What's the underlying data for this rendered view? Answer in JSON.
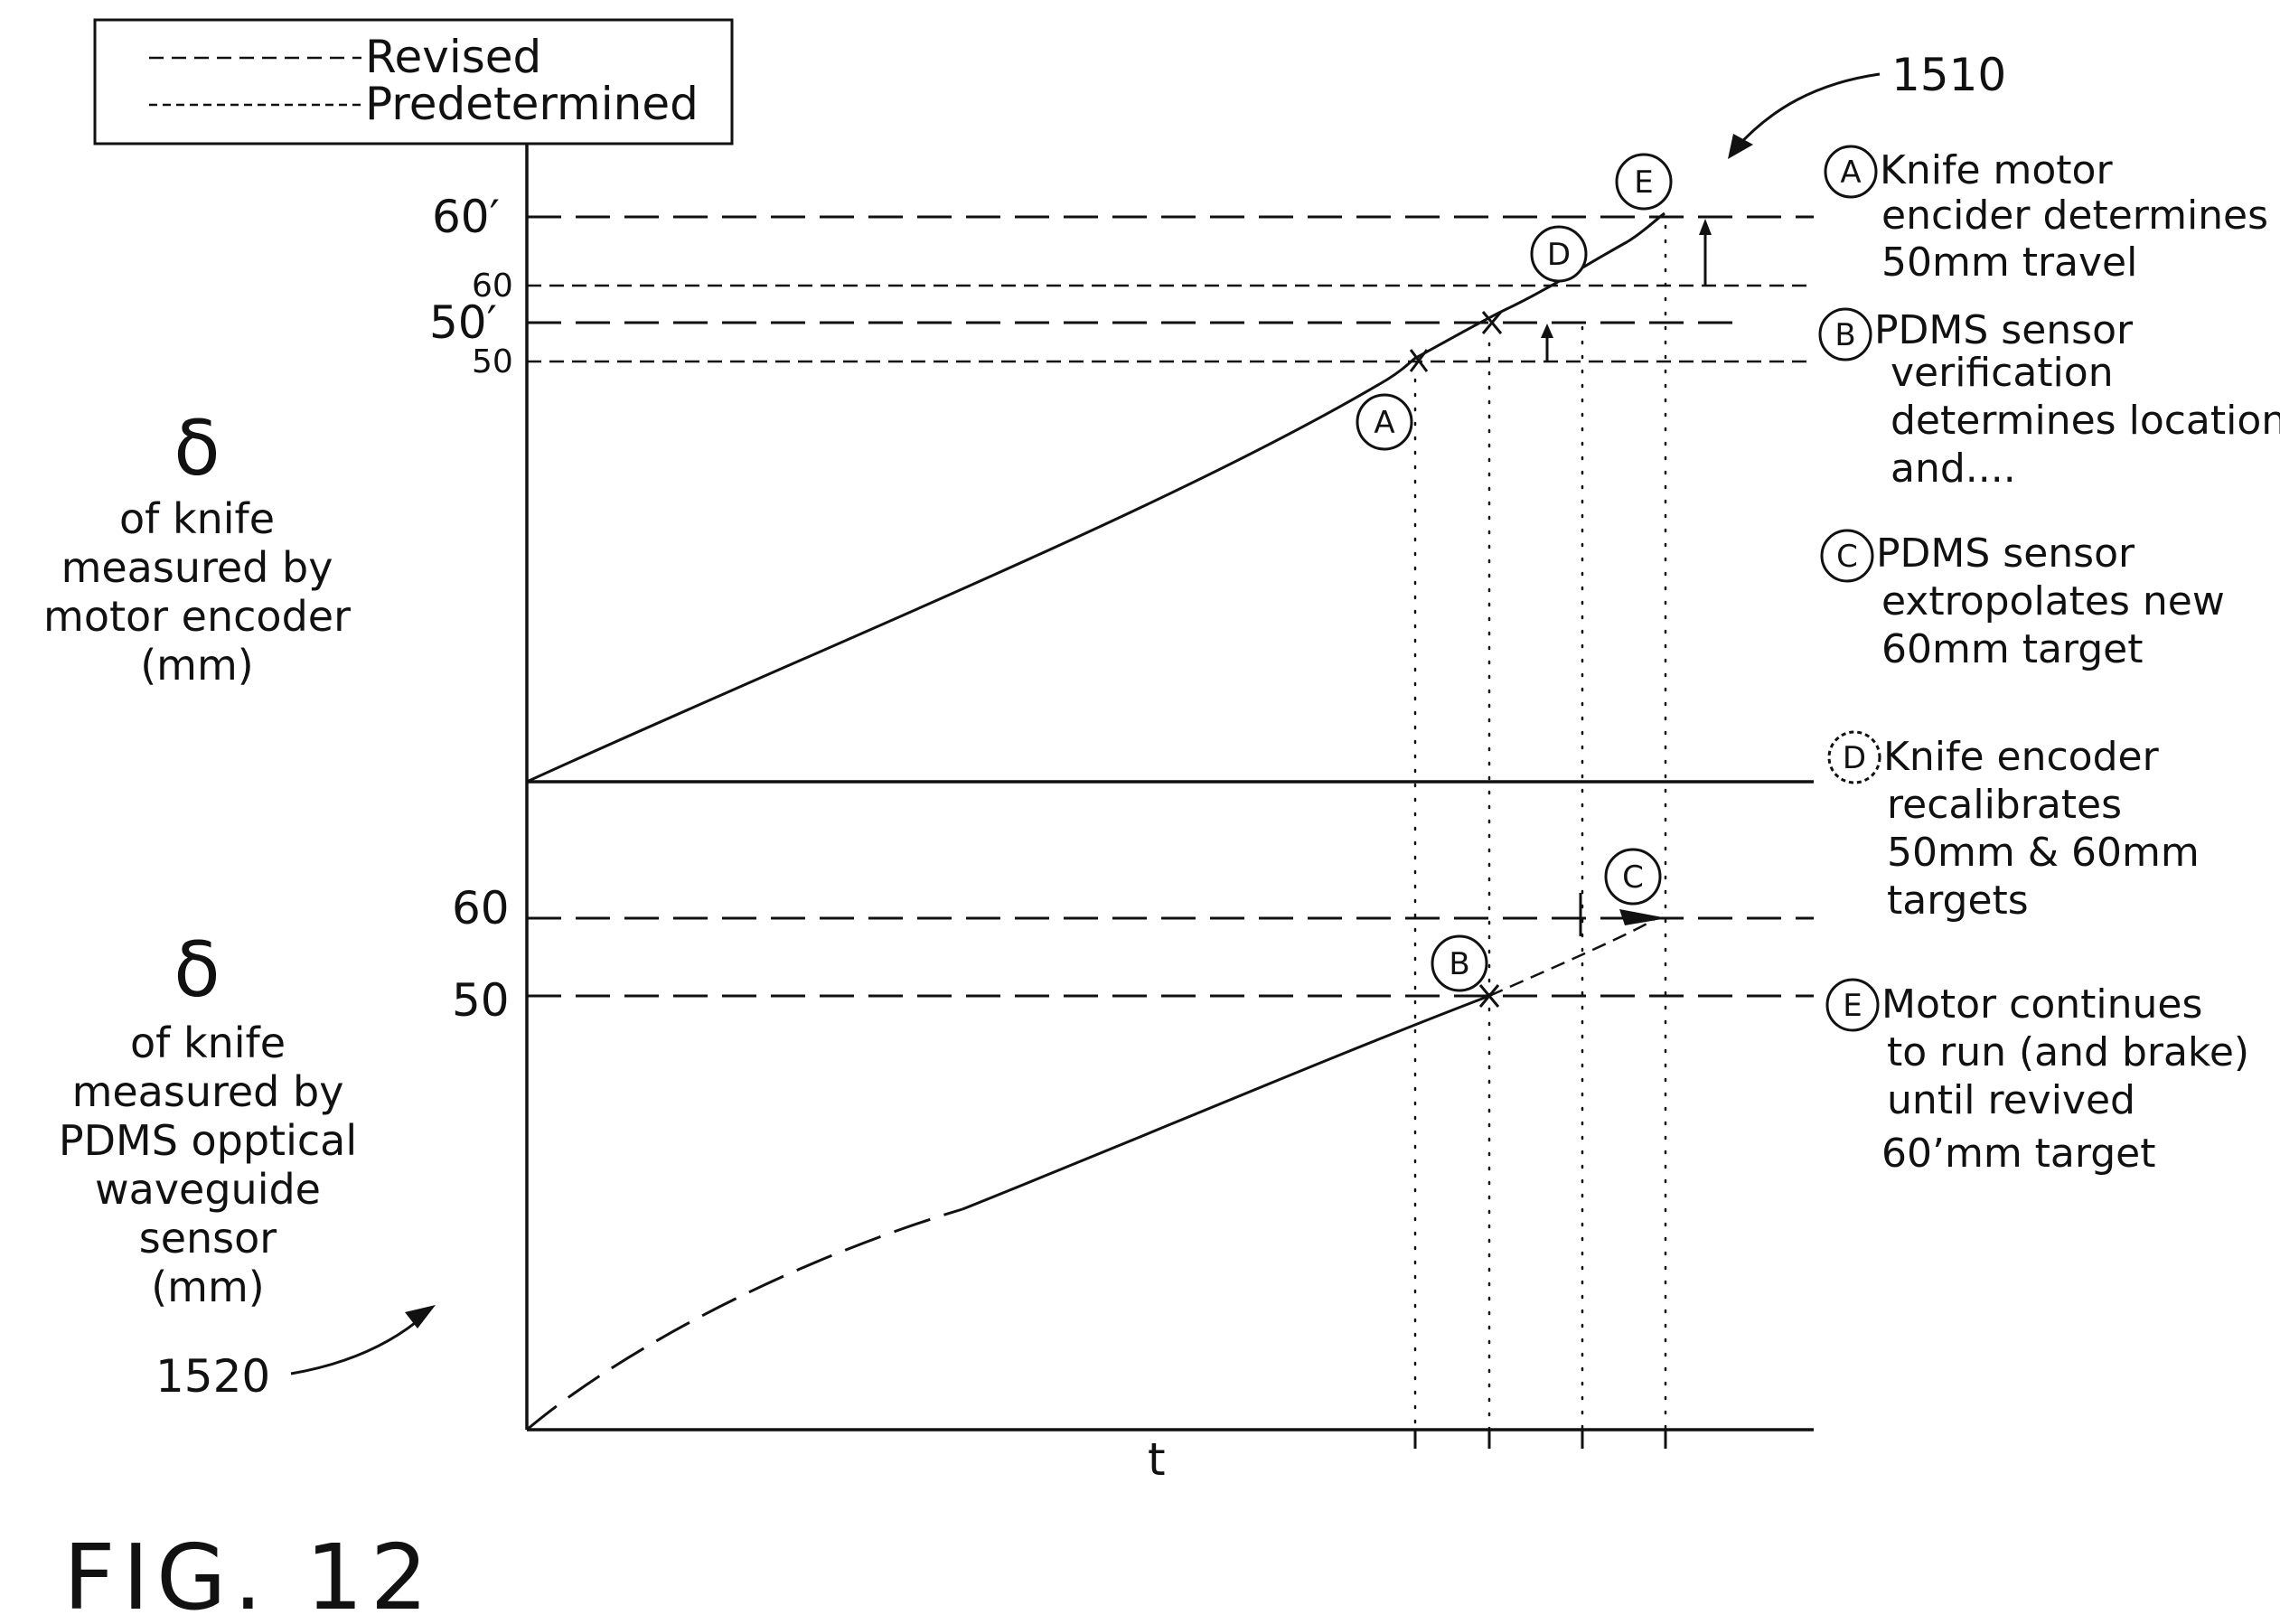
{
  "legend": {
    "revised": "Revised",
    "predetermined": "Predetermined"
  },
  "figure_label": "FIG. 12",
  "refs": {
    "top": "1510",
    "bottom": "1520"
  },
  "top_panel": {
    "y_symbol": "δ",
    "y_label": [
      "of knife",
      "measured by",
      "motor encoder",
      "(mm)"
    ],
    "ticks": {
      "sixty_prime": "60′",
      "sixty": "60",
      "fifty_prime": "50′",
      "fifty": "50"
    }
  },
  "bottom_panel": {
    "y_symbol": "δ",
    "y_label": [
      "of knife",
      "measured by",
      "PDMS opptical",
      "waveguide",
      "sensor",
      "(mm)"
    ],
    "ticks": {
      "sixty": "60",
      "fifty": "50"
    },
    "x_label": "t"
  },
  "points": {
    "A": "A",
    "B": "B",
    "C": "C",
    "D": "D",
    "E": "E"
  },
  "notes": [
    {
      "letter": "A",
      "lines": [
        "Knife motor",
        "encider determines",
        "50mm travel"
      ]
    },
    {
      "letter": "B",
      "lines": [
        "PDMS sensor",
        "verification",
        "determines location",
        "and...."
      ]
    },
    {
      "letter": "C",
      "lines": [
        "PDMS sensor",
        "extropolates new",
        "60mm target"
      ]
    },
    {
      "letter": "D",
      "lines": [
        "Knife encoder",
        "recalibrates",
        "50mm & 60mm",
        "targets"
      ]
    },
    {
      "letter": "E",
      "lines": [
        "Motor continues",
        "to run (and brake)",
        "until revived",
        "60’mm target"
      ]
    }
  ]
}
